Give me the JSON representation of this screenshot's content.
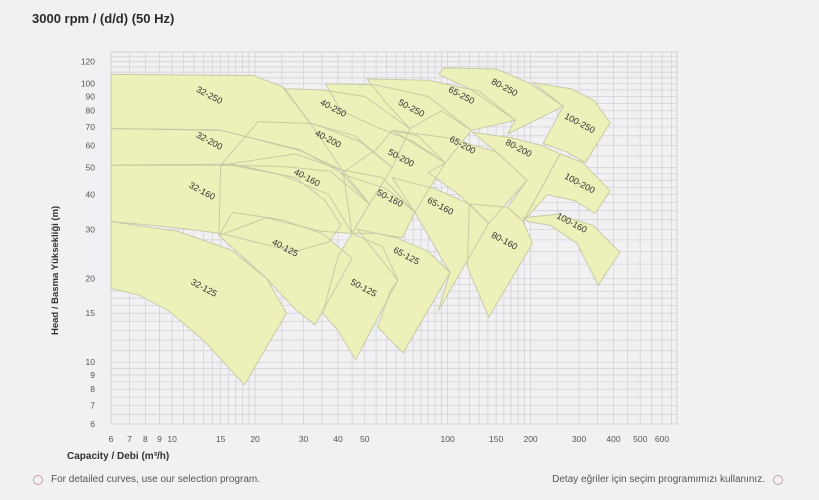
{
  "title": "3000 rpm / (d/d) (50 Hz)",
  "footer": {
    "left_text": "For detailed curves, use our selection program.",
    "right_text": "Detay eğriler için seçim programımızı kullanınız.",
    "icon": "circle-outline-icon"
  },
  "colors": {
    "region_fill": "#eef0b9",
    "region_stroke": "#c8caa6",
    "grid": "#d3d3d8",
    "background": "#f1f1f3"
  },
  "chart_data": {
    "type": "area",
    "title": "3000 rpm / (d/d) (50 Hz)",
    "xlabel": "Capacity / Debi (m³/h)",
    "ylabel": "Head / Basma Yüksekliği (m)",
    "xscale": "log",
    "yscale": "log",
    "xlim": [
      6,
      680
    ],
    "ylim": [
      6,
      130
    ],
    "grid": true,
    "xticks": [
      6,
      7,
      8,
      9,
      10,
      15,
      20,
      30,
      40,
      50,
      100,
      150,
      200,
      300,
      400,
      500,
      600
    ],
    "yticks": [
      6,
      7,
      8,
      9,
      10,
      15,
      20,
      30,
      40,
      50,
      60,
      70,
      80,
      90,
      100,
      120
    ],
    "regions": [
      {
        "name": "32-250",
        "label_at": [
          13.5,
          89
        ],
        "points": [
          [
            6,
            108
          ],
          [
            19.7,
            107
          ],
          [
            25.4,
            97
          ],
          [
            31.6,
            72.5
          ],
          [
            41.6,
            48.8
          ],
          [
            29.2,
            57.5
          ],
          [
            14.7,
            68.4
          ],
          [
            6,
            69
          ]
        ]
      },
      {
        "name": "32-200",
        "label_at": [
          13.5,
          61
        ],
        "points": [
          [
            6,
            69
          ],
          [
            15,
            68
          ],
          [
            29,
            58
          ],
          [
            41,
            48
          ],
          [
            52,
            37
          ],
          [
            45,
            29
          ],
          [
            37,
            40
          ],
          [
            25,
            47
          ],
          [
            16.5,
            51
          ],
          [
            6,
            51
          ]
        ]
      },
      {
        "name": "32-160",
        "label_at": [
          12.7,
          40.3
        ],
        "points": [
          [
            6,
            51
          ],
          [
            16.5,
            51.5
          ],
          [
            28,
            46
          ],
          [
            36,
            38
          ],
          [
            41,
            31
          ],
          [
            37,
            27
          ],
          [
            28,
            25
          ],
          [
            20,
            27
          ],
          [
            15,
            29
          ],
          [
            10,
            30.5
          ],
          [
            6,
            32
          ]
        ]
      },
      {
        "name": "32-125",
        "label_at": [
          12.9,
          18.1
        ],
        "points": [
          [
            6,
            32
          ],
          [
            10.5,
            29.5
          ],
          [
            16.5,
            25.2
          ],
          [
            22,
            20
          ],
          [
            26,
            15
          ],
          [
            18.3,
            8.3
          ],
          [
            13,
            12
          ],
          [
            9.7,
            15.3
          ],
          [
            7.6,
            17.4
          ],
          [
            6,
            18.4
          ]
        ]
      },
      {
        "name": "40-250",
        "label_at": [
          38,
          80
        ],
        "points": [
          [
            25.4,
            96
          ],
          [
            35,
            95
          ],
          [
            50,
            90
          ],
          [
            73,
            69
          ],
          [
            63,
            50
          ],
          [
            48,
            62
          ],
          [
            35,
            70
          ],
          [
            31.6,
            72.5
          ]
        ]
      },
      {
        "name": "40-200",
        "label_at": [
          36.4,
          62
        ],
        "points": [
          [
            15,
            51
          ],
          [
            20.5,
            73
          ],
          [
            32,
            72
          ],
          [
            46,
            65
          ],
          [
            63,
            50
          ],
          [
            52,
            37
          ],
          [
            41.6,
            48.8
          ],
          [
            28,
            56
          ]
        ]
      },
      {
        "name": "40-160",
        "label_at": [
          30.5,
          45
        ],
        "points": [
          [
            15,
            51
          ],
          [
            25,
            50.5
          ],
          [
            37.5,
            48.5
          ],
          [
            52,
            37
          ],
          [
            45,
            29
          ],
          [
            35,
            29.5
          ],
          [
            22,
            33
          ],
          [
            14.8,
            28.5
          ]
        ]
      },
      {
        "name": "40-125",
        "label_at": [
          25.4,
          25.2
        ],
        "points": [
          [
            16.6,
            34.5
          ],
          [
            25,
            32.5
          ],
          [
            35,
            29
          ],
          [
            45,
            23.6
          ],
          [
            33,
            13.6
          ],
          [
            28,
            15.5
          ],
          [
            22,
            20
          ],
          [
            14.8,
            28.5
          ]
        ]
      },
      {
        "name": "50-250",
        "label_at": [
          73,
          80
        ],
        "points": [
          [
            36,
            100
          ],
          [
            55,
            99
          ],
          [
            85,
            90
          ],
          [
            122,
            68
          ],
          [
            98,
            52
          ],
          [
            75,
            62
          ],
          [
            55,
            70
          ],
          [
            41,
            80
          ]
        ]
      },
      {
        "name": "50-200",
        "label_at": [
          67,
          53
        ],
        "points": [
          [
            63,
            68
          ],
          [
            78,
            65
          ],
          [
            98,
            52
          ],
          [
            76,
            34.5
          ],
          [
            60,
            42
          ],
          [
            41,
            47.5
          ],
          [
            55,
            58
          ]
        ]
      },
      {
        "name": "50-160",
        "label_at": [
          61,
          38
        ],
        "points": [
          [
            41.6,
            49
          ],
          [
            58,
            46
          ],
          [
            76,
            34.5
          ],
          [
            68.5,
            28
          ],
          [
            55,
            29
          ],
          [
            45,
            29
          ]
        ]
      },
      {
        "name": "50-125",
        "label_at": [
          49,
          18.1
        ],
        "points": [
          [
            45,
            29
          ],
          [
            58,
            26
          ],
          [
            66,
            19.7
          ],
          [
            46.3,
            10.2
          ],
          [
            40,
            13
          ],
          [
            35.2,
            15
          ],
          [
            40,
            24
          ]
        ]
      },
      {
        "name": "65-250",
        "label_at": [
          111,
          89
        ],
        "points": [
          [
            51,
            104
          ],
          [
            85,
            103
          ],
          [
            130,
            94
          ],
          [
            176,
            74
          ],
          [
            122,
            68
          ],
          [
            95,
            80
          ],
          [
            73,
            69
          ],
          [
            60,
            85
          ]
        ]
      },
      {
        "name": "65-200",
        "label_at": [
          112,
          59
        ],
        "points": [
          [
            63,
            68
          ],
          [
            100,
            64
          ],
          [
            150,
            57
          ],
          [
            194,
            45
          ],
          [
            141,
            31.5
          ],
          [
            110,
            40
          ],
          [
            85,
            48
          ],
          [
            98,
            52
          ]
        ]
      },
      {
        "name": "65-160",
        "label_at": [
          93,
          35.6
        ],
        "points": [
          [
            63,
            46
          ],
          [
            90,
            42
          ],
          [
            120,
            37
          ],
          [
            141,
            31.5
          ],
          [
            92.5,
            15.3
          ],
          [
            102,
            21
          ],
          [
            76,
            34.5
          ]
        ]
      },
      {
        "name": "65-125",
        "label_at": [
          70,
          23.6
        ],
        "points": [
          [
            47,
            30
          ],
          [
            65,
            28
          ],
          [
            85,
            25
          ],
          [
            102,
            21
          ],
          [
            69,
            10.8
          ],
          [
            62,
            12
          ],
          [
            55.7,
            13.4
          ],
          [
            62,
            18
          ],
          [
            66,
            19.7
          ]
        ]
      },
      {
        "name": "80-250",
        "label_at": [
          159,
          95
        ],
        "points": [
          [
            96.6,
            114
          ],
          [
            150,
            113
          ],
          [
            200,
            100
          ],
          [
            263,
            83
          ],
          [
            165,
            66
          ],
          [
            176,
            74
          ],
          [
            120,
            96
          ],
          [
            93,
            108
          ]
        ]
      },
      {
        "name": "80-200",
        "label_at": [
          179,
          57.5
        ],
        "points": [
          [
            123,
            67
          ],
          [
            170,
            64
          ],
          [
            220,
            60
          ],
          [
            256,
            56
          ],
          [
            188,
            32
          ],
          [
            165,
            36
          ],
          [
            194,
            45
          ],
          [
            150,
            57
          ]
        ]
      },
      {
        "name": "80-160",
        "label_at": [
          159,
          26.7
        ],
        "points": [
          [
            120,
            37
          ],
          [
            165,
            36
          ],
          [
            188,
            32
          ],
          [
            203,
            26.7
          ],
          [
            141,
            14.5
          ],
          [
            118,
            22
          ]
        ]
      },
      {
        "name": "100-250",
        "label_at": [
          298,
          70.7
        ],
        "points": [
          [
            204,
            101
          ],
          [
            280,
            96
          ],
          [
            340,
            87
          ],
          [
            389,
            72.5
          ],
          [
            316,
            52
          ],
          [
            270,
            57
          ],
          [
            222,
            61
          ],
          [
            263,
            83
          ]
        ]
      },
      {
        "name": "100-200",
        "label_at": [
          298,
          43
        ],
        "points": [
          [
            256,
            56
          ],
          [
            310,
            52
          ],
          [
            389,
            41.3
          ],
          [
            343,
            34.2
          ],
          [
            290,
            38
          ],
          [
            230,
            40
          ],
          [
            188,
            32
          ]
        ]
      },
      {
        "name": "100-160",
        "label_at": [
          279,
          31
        ],
        "points": [
          [
            188,
            33
          ],
          [
            250,
            34
          ],
          [
            337,
            31
          ],
          [
            422,
            24.8
          ],
          [
            352,
            18.9
          ],
          [
            295,
            26.7
          ],
          [
            236,
            31
          ],
          [
            195,
            32
          ]
        ]
      }
    ]
  }
}
